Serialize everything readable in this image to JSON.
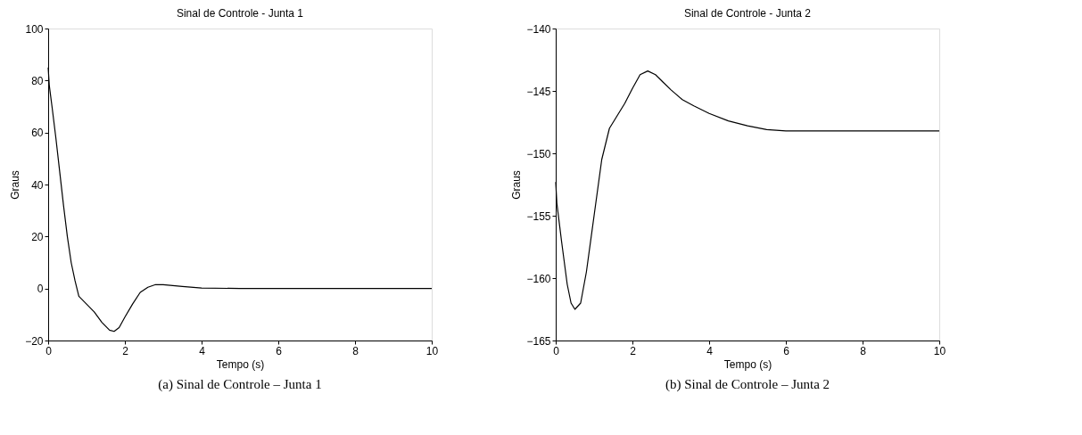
{
  "chart_data": [
    {
      "type": "line",
      "title": "Sinal de Controle - Junta 1",
      "xlabel": "Tempo (s)",
      "ylabel": "Graus",
      "color": "#000000",
      "x": [
        0,
        0.03,
        0.1,
        0.2,
        0.3,
        0.4,
        0.5,
        0.6,
        0.7,
        0.8,
        1.0,
        1.2,
        1.4,
        1.6,
        1.72,
        1.85,
        2.0,
        2.2,
        2.4,
        2.6,
        2.8,
        3.0,
        3.5,
        4.0,
        5.0,
        10.0
      ],
      "values": [
        85,
        78,
        70,
        58,
        45,
        32,
        20,
        10,
        3,
        -3,
        -6,
        -9,
        -13,
        -16,
        -16.5,
        -15,
        -11,
        -6,
        -1.5,
        0.5,
        1.5,
        1.5,
        0.8,
        0.2,
        0,
        0
      ],
      "xlim": [
        0,
        10
      ],
      "xticks": [
        0,
        2,
        4,
        6,
        8,
        10
      ],
      "ylim": [
        -20,
        100
      ],
      "yticks": [
        -20,
        0,
        20,
        40,
        60,
        80,
        100
      ],
      "annotations": [
        "(a)   Sinal de Controle – Junta 1"
      ]
    },
    {
      "type": "line",
      "title": "Sinal de Controle - Junta 2",
      "xlabel": "Tempo (s)",
      "ylabel": "Graus",
      "color": "#000000",
      "x": [
        0,
        0.03,
        0.15,
        0.3,
        0.4,
        0.5,
        0.65,
        0.8,
        1.0,
        1.2,
        1.4,
        1.6,
        1.8,
        2.0,
        2.2,
        2.4,
        2.6,
        2.8,
        3.0,
        3.3,
        3.6,
        4.0,
        4.5,
        5.0,
        5.5,
        6.0,
        10.0
      ],
      "values": [
        -152.3,
        -154,
        -157,
        -160.5,
        -162,
        -162.5,
        -162,
        -159.5,
        -155,
        -150.5,
        -148,
        -147,
        -146,
        -144.8,
        -143.7,
        -143.4,
        -143.7,
        -144.3,
        -144.9,
        -145.7,
        -146.2,
        -146.8,
        -147.4,
        -147.8,
        -148.1,
        -148.2,
        -148.2
      ],
      "xlim": [
        0,
        10
      ],
      "xticks": [
        0,
        2,
        4,
        6,
        8,
        10
      ],
      "ylim": [
        -165,
        -140
      ],
      "yticks": [
        -165,
        -160,
        -155,
        -150,
        -145,
        -140
      ],
      "annotations": [
        "(b)   Sinal de Controle – Junta 2"
      ]
    }
  ]
}
